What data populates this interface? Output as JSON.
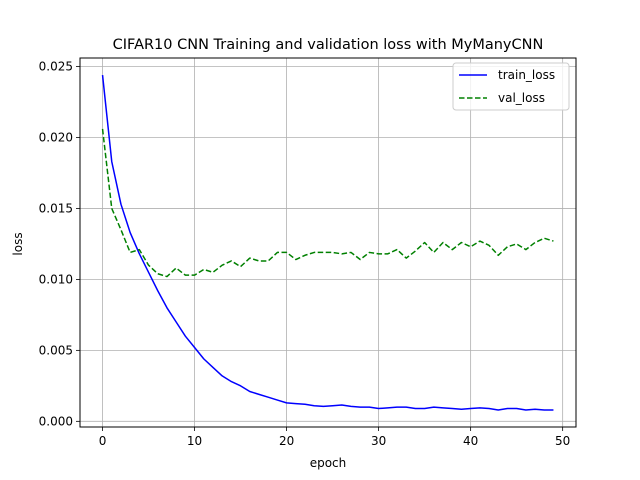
{
  "chart_data": {
    "type": "line",
    "title": "CIFAR10 CNN Training and validation loss with MyManyCNN",
    "xlabel": "epoch",
    "ylabel": "loss",
    "xlim": [
      -2.45,
      51.45
    ],
    "ylim": [
      -0.0004,
      0.0256
    ],
    "xticks": [
      0,
      10,
      20,
      30,
      40,
      50
    ],
    "xtick_labels": [
      "0",
      "10",
      "20",
      "30",
      "40",
      "50"
    ],
    "yticks": [
      0.0,
      0.005,
      0.01,
      0.015,
      0.02,
      0.025
    ],
    "ytick_labels": [
      "0.000",
      "0.005",
      "0.010",
      "0.015",
      "0.020",
      "0.025"
    ],
    "grid": true,
    "legend_position": "top-right",
    "x": [
      0,
      1,
      2,
      3,
      4,
      5,
      6,
      7,
      8,
      9,
      10,
      11,
      12,
      13,
      14,
      15,
      16,
      17,
      18,
      19,
      20,
      21,
      22,
      23,
      24,
      25,
      26,
      27,
      28,
      29,
      30,
      31,
      32,
      33,
      34,
      35,
      36,
      37,
      38,
      39,
      40,
      41,
      42,
      43,
      44,
      45,
      46,
      47,
      48,
      49
    ],
    "series": [
      {
        "name": "train_loss",
        "color": "#0000ff",
        "style": "solid",
        "values": [
          0.0244,
          0.0183,
          0.0153,
          0.0133,
          0.0118,
          0.0105,
          0.0092,
          0.008,
          0.007,
          0.006,
          0.0052,
          0.0044,
          0.0038,
          0.0032,
          0.0028,
          0.0025,
          0.0021,
          0.0019,
          0.0017,
          0.0015,
          0.0013,
          0.00125,
          0.0012,
          0.0011,
          0.00105,
          0.0011,
          0.00115,
          0.00105,
          0.001,
          0.001,
          0.0009,
          0.00095,
          0.001,
          0.001,
          0.0009,
          0.0009,
          0.001,
          0.00095,
          0.0009,
          0.00085,
          0.0009,
          0.00095,
          0.0009,
          0.0008,
          0.0009,
          0.0009,
          0.0008,
          0.00085,
          0.0008,
          0.0008
        ]
      },
      {
        "name": "val_loss",
        "color": "#008000",
        "style": "dashed",
        "values": [
          0.0206,
          0.015,
          0.0135,
          0.0119,
          0.0121,
          0.011,
          0.0104,
          0.0102,
          0.0108,
          0.0103,
          0.0103,
          0.0107,
          0.0105,
          0.011,
          0.0113,
          0.0109,
          0.0115,
          0.0113,
          0.0113,
          0.0119,
          0.0119,
          0.0114,
          0.0117,
          0.0119,
          0.0119,
          0.0119,
          0.0118,
          0.0119,
          0.0114,
          0.0119,
          0.0118,
          0.0118,
          0.0121,
          0.0115,
          0.012,
          0.0126,
          0.0119,
          0.0126,
          0.0121,
          0.0126,
          0.0123,
          0.0127,
          0.0124,
          0.0117,
          0.0123,
          0.0125,
          0.0121,
          0.0126,
          0.0129,
          0.0127
        ]
      }
    ]
  }
}
